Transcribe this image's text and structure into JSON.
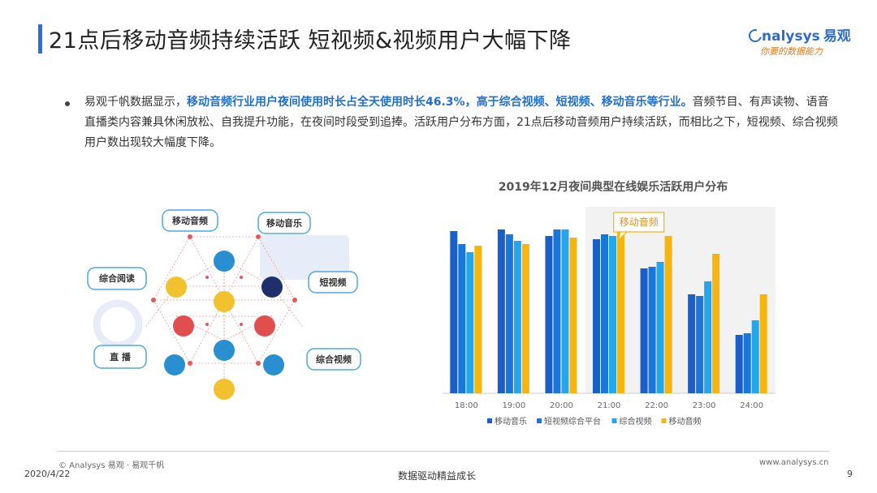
{
  "header": {
    "title": "21点后移动音频持续活跃 短视频&视频用户大幅下降",
    "logo_text": "nalysys",
    "logo_cn": "易观",
    "logo_tagline": "你要的数据能力"
  },
  "body": {
    "para_lead": "易观千帆数据显示，",
    "para_highlight": "移动音频行业用户夜间使用时长占全天使用时长46.3%，高于综合视频、短视频、移动音乐等行业。",
    "para_rest": "音频节目、有声读物、语音直播类内容兼具休闲放松、自我提升功能，在夜间时段受到追捧。活跃用户分布方面，21点后移动音频用户持续活跃，而相比之下，短视频、综合视频用户数出现较大幅度下降。"
  },
  "network": {
    "labels": [
      "移动音频",
      "移动音乐",
      "综合阅读",
      "短视频",
      "直 播",
      "综合视频"
    ]
  },
  "chart_data": {
    "type": "bar",
    "title": "2019年12月夜间典型在线娱乐活跃用户分布",
    "categories": [
      "18:00",
      "19:00",
      "20:00",
      "21:00",
      "22:00",
      "23:00",
      "24:00"
    ],
    "series": [
      {
        "name": "移动音乐",
        "values": [
          100,
          101,
          97,
          95,
          77,
          61,
          36
        ]
      },
      {
        "name": "短视频综合平台",
        "values": [
          92,
          98,
          101,
          98,
          78,
          60,
          37
        ]
      },
      {
        "name": "综合视频",
        "values": [
          87,
          94,
          101,
          97,
          81,
          69,
          45
        ]
      },
      {
        "name": "移动音频",
        "values": [
          91,
          92,
          96,
          102,
          97,
          86,
          61
        ]
      }
    ],
    "colors": [
      "#1a5fc8",
      "#1877d8",
      "#25a5ea",
      "#f6b40e"
    ],
    "ylim": [
      0,
      115
    ],
    "highlight_range": [
      "21:00",
      "24:00"
    ],
    "annotation": "移动音频",
    "legend": "bottom"
  },
  "footer": {
    "copyright": "© Analysys 易观 · 易观千帆",
    "date": "2020/4/22",
    "slogan": "数据驱动精益成长",
    "website": "www.analysys.cn",
    "page": "9"
  }
}
